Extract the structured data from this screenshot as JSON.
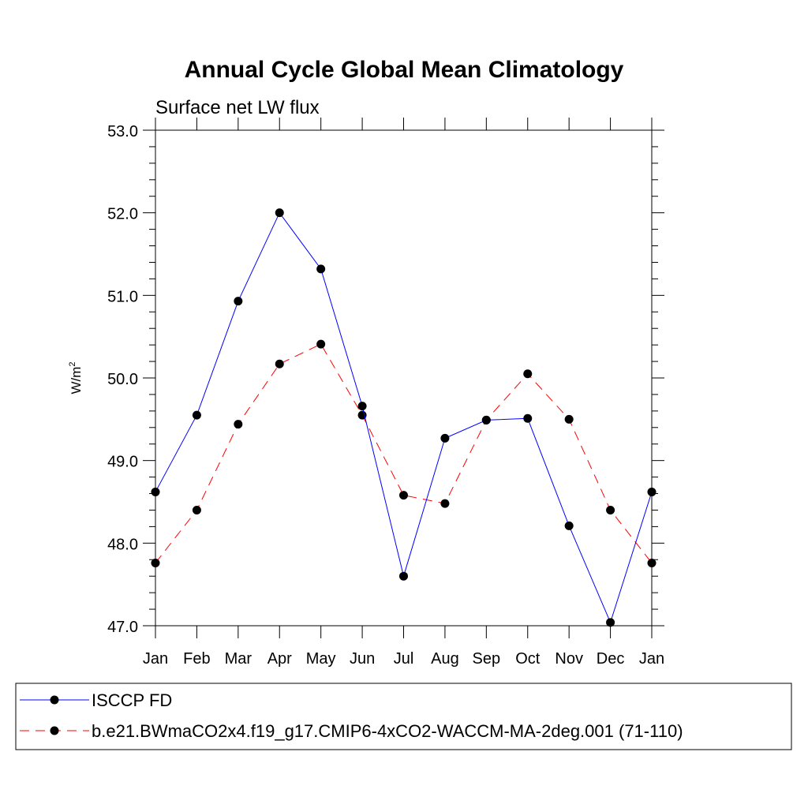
{
  "chart_data": {
    "type": "line",
    "title": "Annual Cycle Global Mean Climatology",
    "subtitle": "Surface net LW flux",
    "ylabel_base": "W/m",
    "ylabel_sup": "2",
    "xlabel": "",
    "categories": [
      "Jan",
      "Feb",
      "Mar",
      "Apr",
      "May",
      "Jun",
      "Jul",
      "Aug",
      "Sep",
      "Oct",
      "Nov",
      "Dec",
      "Jan"
    ],
    "y_ticks": [
      "53.0",
      "52.0",
      "51.0",
      "50.0",
      "49.0",
      "48.0",
      "47.0"
    ],
    "ylim": [
      47.0,
      53.0
    ],
    "grid": false,
    "legend_position": "bottom",
    "series": [
      {
        "name": "ISCCP FD",
        "color": "#0000ff",
        "style": "solid",
        "values": [
          48.62,
          49.55,
          50.93,
          52.0,
          51.32,
          49.66,
          47.6,
          49.27,
          49.49,
          49.51,
          48.21,
          47.04,
          48.62
        ]
      },
      {
        "name": "b.e21.BWmaCO2x4.f19_g17.CMIP6-4xCO2-WACCM-MA-2deg.001 (71-110)",
        "color": "#ff0000",
        "style": "dashed",
        "values": [
          47.76,
          48.4,
          49.44,
          50.17,
          50.41,
          49.55,
          48.58,
          48.48,
          49.49,
          50.05,
          49.5,
          48.4,
          47.76
        ]
      }
    ]
  }
}
